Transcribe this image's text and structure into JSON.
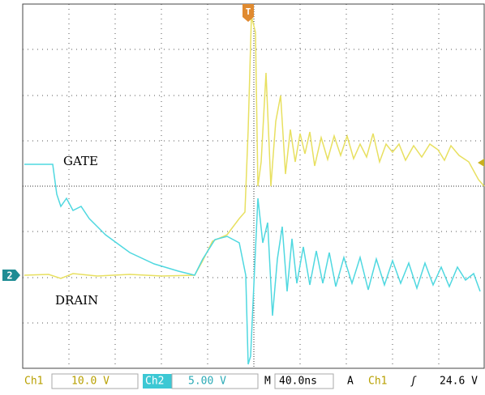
{
  "screen": {
    "trigger_marker": "T",
    "channel_marker": "2",
    "labels": {
      "gate": "GATE",
      "drain": "DRAIN"
    }
  },
  "status_bar": {
    "ch1": "Ch1",
    "ch1_scale": "10.0 V",
    "ch2": "Ch2",
    "ch2_scale": "5.00 V",
    "timebase_mode": "M",
    "timebase": "40.0ns",
    "acquire": "A",
    "trigger_source": "Ch1",
    "trigger_slope": "ʃ",
    "trigger_level": "24.6 V"
  }
}
